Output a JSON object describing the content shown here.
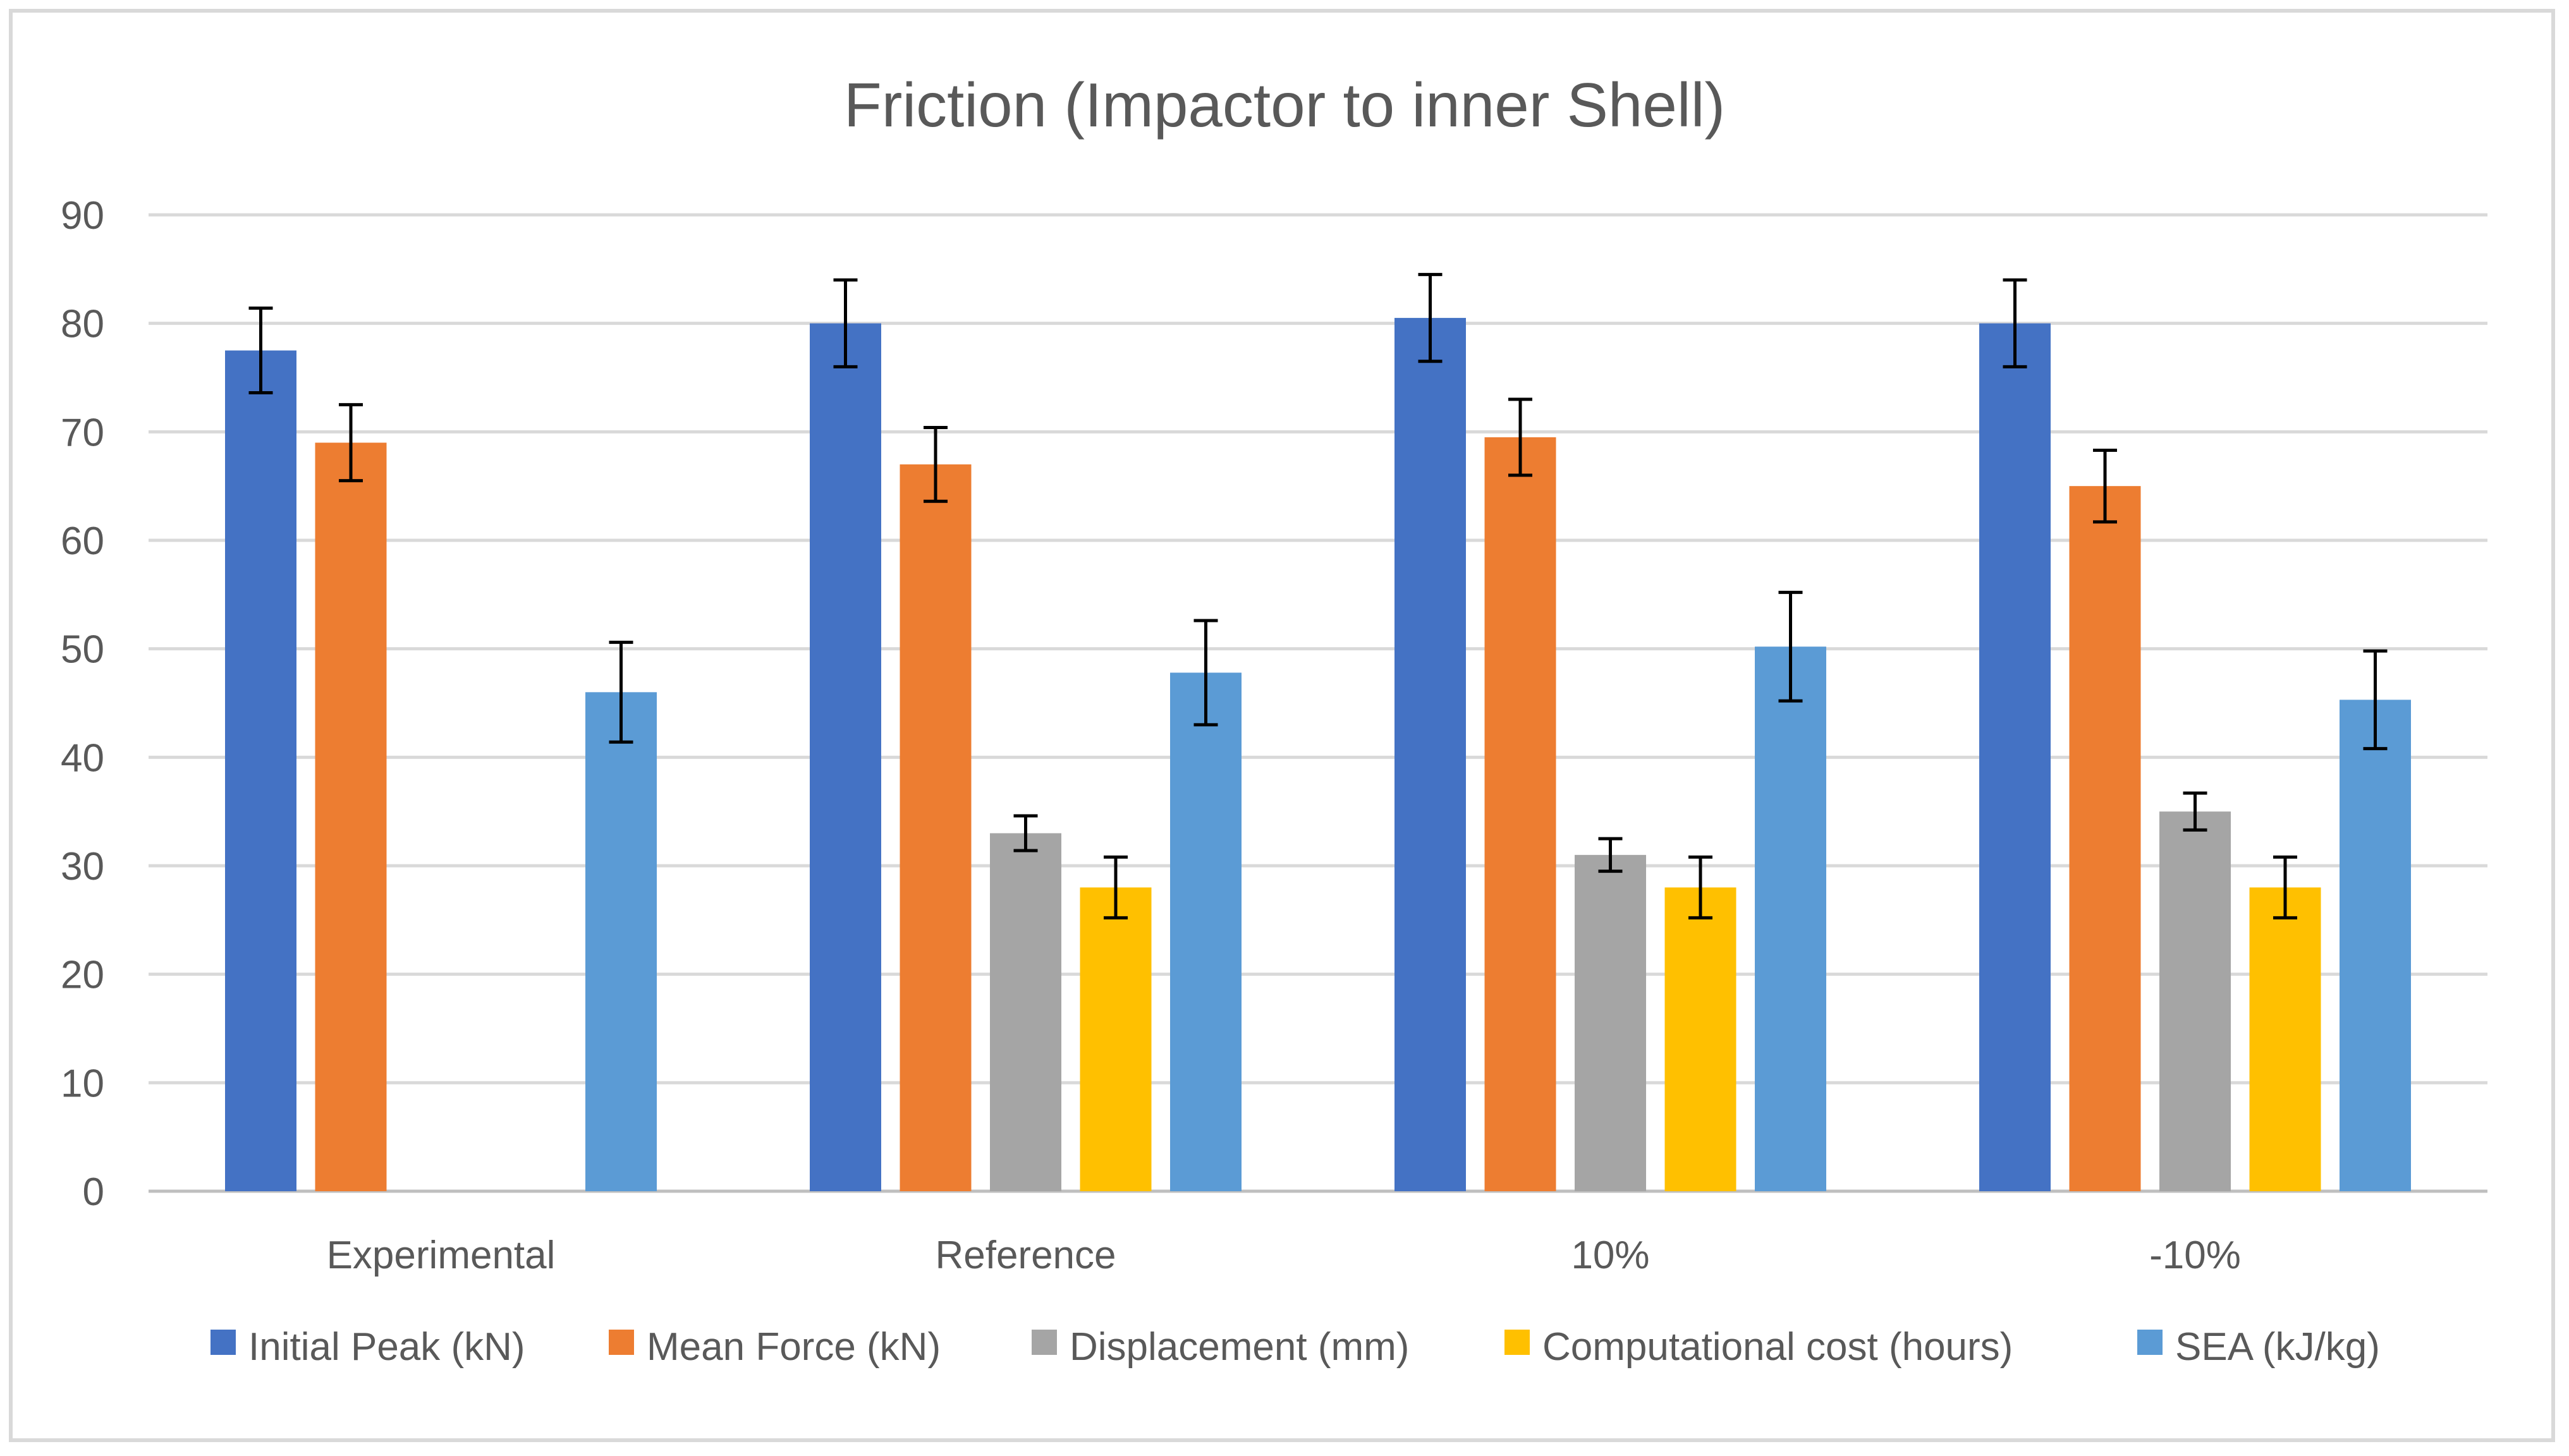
{
  "chart_data": {
    "type": "bar",
    "title": "Friction (Impactor to inner Shell)",
    "xlabel": "",
    "ylabel": "",
    "ylim": [
      0,
      90
    ],
    "ytick_step": 10,
    "grid": true,
    "legend_position": "bottom",
    "categories": [
      "Experimental",
      "Reference",
      "10%",
      "-10%"
    ],
    "series": [
      {
        "name": "Initial Peak (kN)",
        "color": "#4472c4",
        "values": [
          77.5,
          80,
          80.5,
          80
        ],
        "errors": [
          3.9,
          4.0,
          4.0,
          4.0
        ]
      },
      {
        "name": "Mean Force (kN)",
        "color": "#ed7d31",
        "values": [
          69,
          67,
          69.5,
          65
        ],
        "errors": [
          3.5,
          3.4,
          3.5,
          3.3
        ]
      },
      {
        "name": "Displacement (mm)",
        "color": "#a5a5a5",
        "values": [
          null,
          33,
          31,
          35
        ],
        "errors": [
          null,
          1.6,
          1.5,
          1.7
        ]
      },
      {
        "name": "Computational cost (hours)",
        "color": "#ffc000",
        "values": [
          null,
          28,
          28,
          28
        ],
        "errors": [
          null,
          2.8,
          2.8,
          2.8
        ]
      },
      {
        "name": "SEA (kJ/kg)",
        "color": "#5b9bd5",
        "values": [
          46,
          47.8,
          50.2,
          45.3
        ],
        "errors": [
          4.6,
          4.8,
          5.0,
          4.5
        ]
      }
    ]
  }
}
